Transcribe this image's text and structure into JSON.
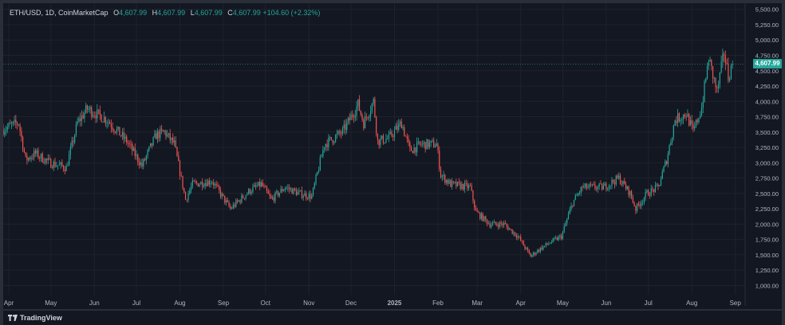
{
  "legend": {
    "symbol": "ETH/USD, 1D, CoinMarketCap",
    "o_label": "O",
    "o": "4,607.99",
    "h_label": "H",
    "h": "4,607.99",
    "l_label": "L",
    "l": "4,607.99",
    "c_label": "C",
    "c": "4,607.99",
    "change": "+104.60 (+2.32%)"
  },
  "current_price_tag": "4,607.99",
  "branding": {
    "name": "TradingView"
  },
  "colors": {
    "background": "#131722",
    "frame": "#2a2e39",
    "grid": "#1e222d",
    "up": "#26a69a",
    "down": "#ef5350",
    "axis_text": "#b2b5be"
  },
  "chart_data": {
    "type": "candlestick",
    "title": "ETH/USD, 1D, CoinMarketCap",
    "ylim": [
      850,
      5600
    ],
    "y_ticks": [
      1000,
      1250,
      1500,
      1750,
      2000,
      2250,
      2500,
      2750,
      3000,
      3250,
      3500,
      3750,
      4000,
      4250,
      4500,
      4750,
      5000,
      5250,
      5500
    ],
    "y_tick_labels": [
      "1,000.00",
      "1,250.00",
      "1,500.00",
      "1,750.00",
      "2,000.00",
      "2,250.00",
      "2,500.00",
      "2,750.00",
      "3,000.00",
      "3,250.00",
      "3,500.00",
      "3,750.00",
      "4,000.00",
      "4,250.00",
      "4,500.00",
      "4,750.00",
      "5,000.00",
      "5,250.00",
      "5,500.00"
    ],
    "x_ticks": [
      {
        "date": "2024-04-01",
        "label": "Apr"
      },
      {
        "date": "2024-05-01",
        "label": "May"
      },
      {
        "date": "2024-06-01",
        "label": "Jun"
      },
      {
        "date": "2024-07-01",
        "label": "Jul"
      },
      {
        "date": "2024-08-01",
        "label": "Aug"
      },
      {
        "date": "2024-09-01",
        "label": "Sep"
      },
      {
        "date": "2024-10-01",
        "label": "Oct"
      },
      {
        "date": "2024-11-01",
        "label": "Nov"
      },
      {
        "date": "2024-12-01",
        "label": "Dec"
      },
      {
        "date": "2025-01-01",
        "label": "2025"
      },
      {
        "date": "2025-02-01",
        "label": "Feb"
      },
      {
        "date": "2025-03-01",
        "label": "Mar"
      },
      {
        "date": "2025-04-01",
        "label": "Apr"
      },
      {
        "date": "2025-05-01",
        "label": "May"
      },
      {
        "date": "2025-06-01",
        "label": "Jun"
      },
      {
        "date": "2025-07-01",
        "label": "Jul"
      },
      {
        "date": "2025-08-01",
        "label": "Aug"
      },
      {
        "date": "2025-09-01",
        "label": "Sep"
      }
    ],
    "x_range": [
      "2024-03-28",
      "2025-09-08"
    ],
    "close_path": [
      {
        "date": "2024-03-28",
        "value": 3550
      },
      {
        "date": "2024-04-08",
        "value": 3650
      },
      {
        "date": "2024-04-13",
        "value": 3050
      },
      {
        "date": "2024-04-20",
        "value": 3150
      },
      {
        "date": "2024-04-30",
        "value": 3000
      },
      {
        "date": "2024-05-12",
        "value": 2920
      },
      {
        "date": "2024-05-20",
        "value": 3650
      },
      {
        "date": "2024-05-27",
        "value": 3880
      },
      {
        "date": "2024-06-10",
        "value": 3700
      },
      {
        "date": "2024-06-18",
        "value": 3500
      },
      {
        "date": "2024-06-24",
        "value": 3350
      },
      {
        "date": "2024-07-05",
        "value": 2950
      },
      {
        "date": "2024-07-15",
        "value": 3450
      },
      {
        "date": "2024-07-21",
        "value": 3500
      },
      {
        "date": "2024-07-28",
        "value": 3300
      },
      {
        "date": "2024-08-05",
        "value": 2400
      },
      {
        "date": "2024-08-10",
        "value": 2650
      },
      {
        "date": "2024-08-24",
        "value": 2700
      },
      {
        "date": "2024-09-06",
        "value": 2250
      },
      {
        "date": "2024-09-20",
        "value": 2550
      },
      {
        "date": "2024-09-28",
        "value": 2650
      },
      {
        "date": "2024-10-05",
        "value": 2400
      },
      {
        "date": "2024-10-15",
        "value": 2600
      },
      {
        "date": "2024-10-25",
        "value": 2500
      },
      {
        "date": "2024-11-03",
        "value": 2450
      },
      {
        "date": "2024-11-12",
        "value": 3300
      },
      {
        "date": "2024-11-25",
        "value": 3500
      },
      {
        "date": "2024-12-06",
        "value": 3950
      },
      {
        "date": "2024-12-10",
        "value": 3650
      },
      {
        "date": "2024-12-17",
        "value": 4000
      },
      {
        "date": "2024-12-20",
        "value": 3350
      },
      {
        "date": "2024-12-28",
        "value": 3400
      },
      {
        "date": "2025-01-06",
        "value": 3650
      },
      {
        "date": "2025-01-12",
        "value": 3200
      },
      {
        "date": "2025-01-20",
        "value": 3300
      },
      {
        "date": "2025-01-31",
        "value": 3300
      },
      {
        "date": "2025-02-03",
        "value": 2800
      },
      {
        "date": "2025-02-10",
        "value": 2650
      },
      {
        "date": "2025-02-24",
        "value": 2600
      },
      {
        "date": "2025-02-28",
        "value": 2200
      },
      {
        "date": "2025-03-10",
        "value": 2000
      },
      {
        "date": "2025-03-20",
        "value": 2000
      },
      {
        "date": "2025-03-30",
        "value": 1800
      },
      {
        "date": "2025-04-08",
        "value": 1480
      },
      {
        "date": "2025-04-15",
        "value": 1600
      },
      {
        "date": "2025-04-22",
        "value": 1700
      },
      {
        "date": "2025-04-30",
        "value": 1800
      },
      {
        "date": "2025-05-08",
        "value": 2350
      },
      {
        "date": "2025-05-15",
        "value": 2600
      },
      {
        "date": "2025-05-30",
        "value": 2600
      },
      {
        "date": "2025-06-10",
        "value": 2750
      },
      {
        "date": "2025-06-18",
        "value": 2500
      },
      {
        "date": "2025-06-22",
        "value": 2250
      },
      {
        "date": "2025-06-30",
        "value": 2500
      },
      {
        "date": "2025-07-08",
        "value": 2600
      },
      {
        "date": "2025-07-14",
        "value": 3050
      },
      {
        "date": "2025-07-20",
        "value": 3700
      },
      {
        "date": "2025-07-28",
        "value": 3800
      },
      {
        "date": "2025-08-02",
        "value": 3500
      },
      {
        "date": "2025-08-08",
        "value": 3900
      },
      {
        "date": "2025-08-13",
        "value": 4700
      },
      {
        "date": "2025-08-19",
        "value": 4150
      },
      {
        "date": "2025-08-24",
        "value": 4800
      },
      {
        "date": "2025-08-27",
        "value": 4400
      },
      {
        "date": "2025-08-30",
        "value": 4607.99
      }
    ],
    "last_value": 4607.99,
    "price_line": 4607.99
  }
}
